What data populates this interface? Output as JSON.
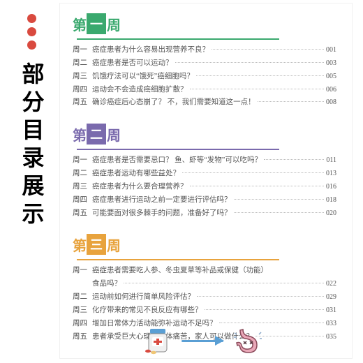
{
  "sidebar": {
    "dot_colors": [
      "#d94a3f",
      "#d94a3f",
      "#d94a3f"
    ],
    "title": "部分目录展示"
  },
  "weeks": [
    {
      "label_chars": [
        "第",
        "一",
        "周"
      ],
      "color": "#3aa96e",
      "items": [
        {
          "day": "周一",
          "title": "癌症患者为什么容易出现营养不良？",
          "page": "001"
        },
        {
          "day": "周二",
          "title": "癌症患者是否可以运动？",
          "page": "003"
        },
        {
          "day": "周三",
          "title": "饥饿疗法可以“饿死”癌细胞吗？",
          "page": "005"
        },
        {
          "day": "周四",
          "title": "运动会不会造成癌细胞扩散？",
          "page": "006"
        },
        {
          "day": "周五",
          "title": "确诊癌症后心态崩了？ 不，我们需要知道这一点！",
          "page": "008"
        }
      ]
    },
    {
      "label_chars": [
        "第",
        "二",
        "周"
      ],
      "color": "#7a6aad",
      "items": [
        {
          "day": "周一",
          "title": "癌症患者是否需要忌口？ 鱼、虾等“发物”可以吃吗？",
          "page": "011"
        },
        {
          "day": "周二",
          "title": "癌症患者运动有哪些益处？",
          "page": "013"
        },
        {
          "day": "周三",
          "title": "癌症患者为什么要合理营养？",
          "page": "016"
        },
        {
          "day": "周四",
          "title": "癌症患者进行运动之前一定要进行评估吗？",
          "page": "018"
        },
        {
          "day": "周五",
          "title": "可能要面对很多棘手的问题，准备好了吗？",
          "page": "020"
        }
      ]
    },
    {
      "label_chars": [
        "第",
        "三",
        "周"
      ],
      "color": "#e8a33d",
      "items": [
        {
          "day": "周一",
          "title": "癌症患者需要吃人参、冬虫夏草等补品或保健（功能）",
          "title2": "食品吗？",
          "page": "022"
        },
        {
          "day": "周二",
          "title": "运动前如何进行简单风险评估？",
          "page": "029"
        },
        {
          "day": "周三",
          "title": "化疗带来的常见不良反应有哪些？",
          "page": "031"
        },
        {
          "day": "周四",
          "title": "增加日常体力活动能弥补运动不足吗？",
          "page": "033"
        },
        {
          "day": "周五",
          "title": "患者承受巨大心理和身体痛苦，家人可以做什么？",
          "page": "035"
        }
      ]
    }
  ],
  "illustration": {
    "bottle_body": "#f5f5f5",
    "bottle_cap": "#5a9fd4",
    "cross": "#d94a3f",
    "arrow_color": "#5a9fd4",
    "stomach_fill": "#e9a8b8",
    "stomach_stroke": "#8a4a5a"
  }
}
